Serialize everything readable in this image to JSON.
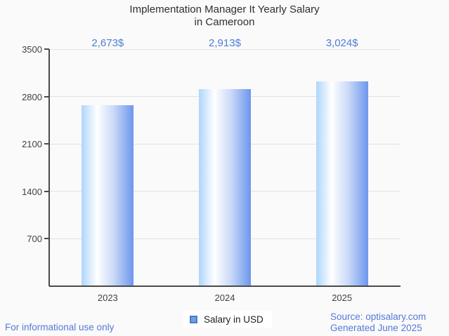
{
  "chart_data": {
    "type": "bar",
    "title": "Implementation Manager It Yearly Salary in Cameroon",
    "title_lines": [
      "Implementation Manager It Yearly Salary",
      "in Cameroon"
    ],
    "categories": [
      "2023",
      "2024",
      "2025"
    ],
    "series": [
      {
        "name": "Salary in USD",
        "values": [
          2673,
          2913,
          3024
        ]
      }
    ],
    "value_labels": [
      "2,673$",
      "2,913$",
      "3,024$"
    ],
    "xlabel": "",
    "ylabel": "",
    "ylim": [
      0,
      3500
    ],
    "yticks": [
      3500,
      2800,
      2100,
      1400,
      700
    ],
    "grid": true,
    "legend_position": "bottom"
  },
  "legend": {
    "label": "Salary in USD",
    "swatch_color": "#6c9fe8",
    "swatch_border": "#4a7cc7"
  },
  "footer": {
    "left": "For informational use only",
    "source": "Source: optisalary.com",
    "generated": "Generated June 2025"
  },
  "colors": {
    "background": "#fafafa",
    "annotation_blue": "#4d7ed8",
    "footer_blue": "#5479d8",
    "axis": "#4a4a4a",
    "gridline": "#e2e2e2",
    "bar_gradient": [
      "#aed6fb",
      "#ffffff",
      "#6d96ee"
    ],
    "title_text": "#2e2e2e",
    "axis_label_text": "#424242"
  }
}
